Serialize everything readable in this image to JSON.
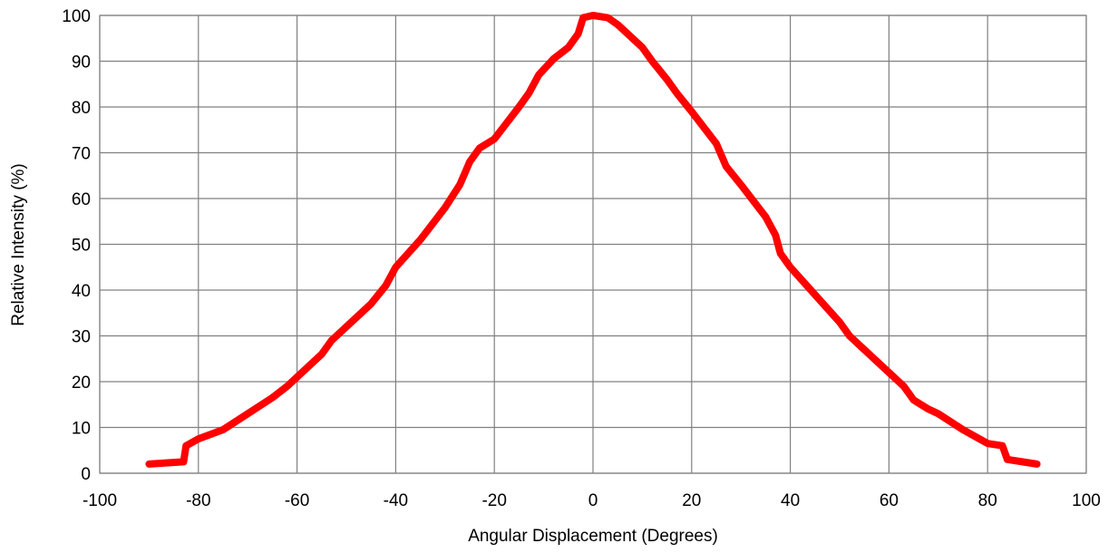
{
  "chart_data": {
    "type": "line",
    "xlabel": "Angular Displacement (Degrees)",
    "ylabel": "Relative Intensity (%)",
    "x": [
      -90,
      -83,
      -82.5,
      -80,
      -75,
      -70,
      -65,
      -62,
      -60,
      -55,
      -53,
      -50,
      -45,
      -42,
      -40,
      -35,
      -30,
      -27,
      -25,
      -23,
      -20,
      -15,
      -13,
      -11,
      -8,
      -5,
      -3,
      -2,
      0,
      3,
      5,
      10,
      12,
      15,
      17,
      20,
      25,
      27,
      30,
      35,
      37,
      38,
      40,
      45,
      50,
      52,
      55,
      60,
      63,
      65,
      68,
      70,
      75,
      80,
      83,
      84,
      90
    ],
    "series": [
      {
        "name": "Relative Intensity",
        "color": "#ff0000",
        "values": [
          2,
          2.5,
          6,
          7.5,
          9.5,
          13,
          16.5,
          19,
          21,
          26,
          29,
          32,
          37,
          41,
          45,
          51,
          58,
          63,
          68,
          71,
          73,
          80,
          83,
          87,
          90.5,
          93,
          96,
          99.5,
          100,
          99.5,
          98,
          93,
          90,
          86,
          83,
          79,
          72,
          67,
          63,
          56,
          52,
          48,
          45,
          39,
          33,
          30,
          27,
          22,
          19,
          16,
          14,
          13,
          9.5,
          6.5,
          6,
          3,
          2
        ]
      }
    ],
    "xlim": [
      -100,
      100
    ],
    "xticks": [
      -100,
      -80,
      -60,
      -40,
      -20,
      0,
      20,
      40,
      60,
      80,
      100
    ],
    "ylim": [
      0,
      100
    ],
    "yticks": [
      0,
      10,
      20,
      30,
      40,
      50,
      60,
      70,
      80,
      90,
      100
    ],
    "grid": true
  }
}
